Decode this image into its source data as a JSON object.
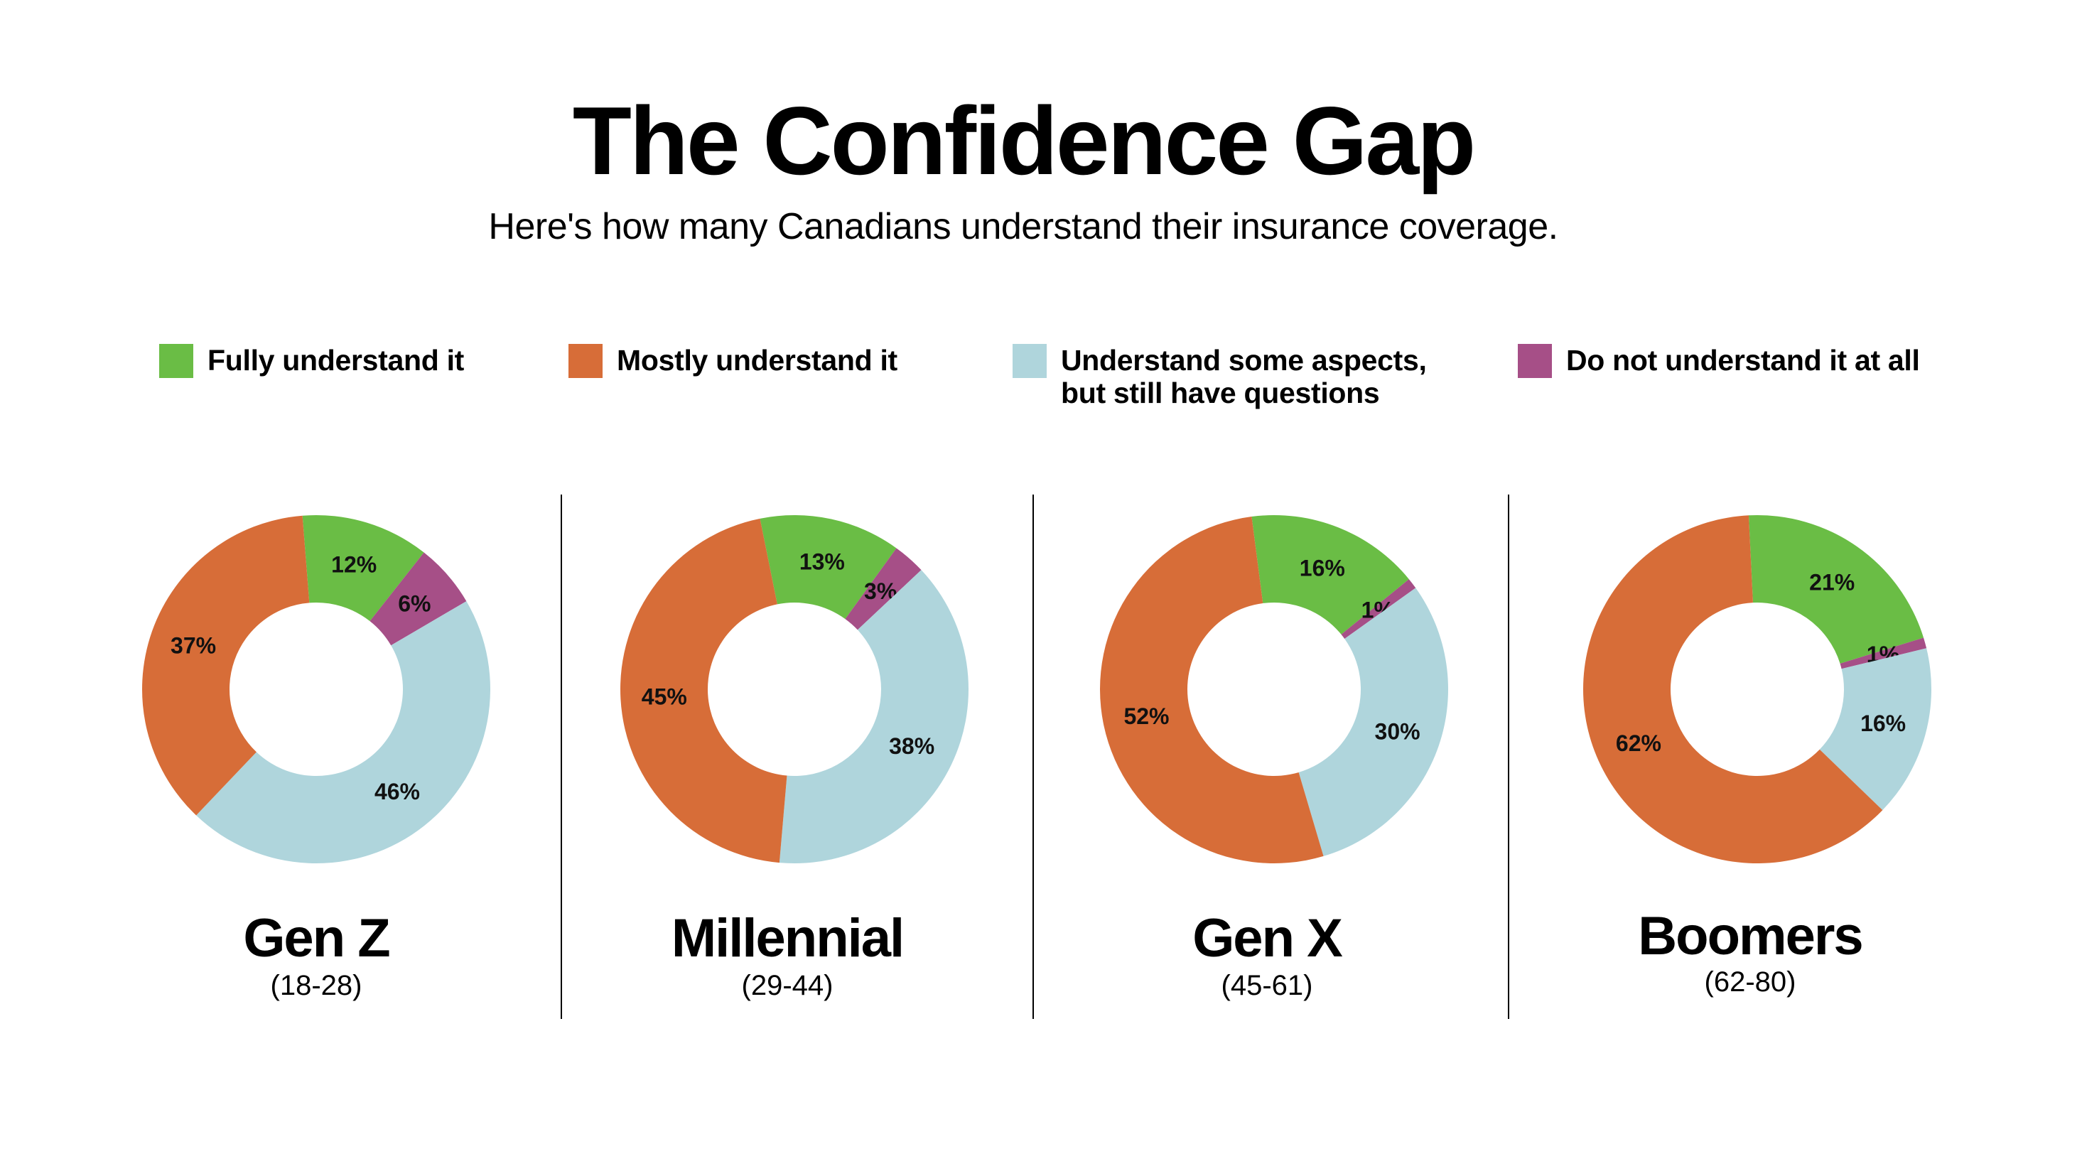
{
  "header": {
    "title": "The Confidence Gap",
    "subtitle": "Here's how many Canadians understand their insurance coverage."
  },
  "legend": [
    {
      "label": "Fully understand it",
      "color": "#6abd45"
    },
    {
      "label": "Mostly understand it",
      "color": "#d76d38"
    },
    {
      "label": "Understand some aspects,\nbut still have questions",
      "color": "#afd5dc"
    },
    {
      "label": "Do not understand it at all",
      "color": "#a64f87"
    }
  ],
  "chart_data": {
    "type": "pie",
    "variant": "donut",
    "categories": [
      "Fully understand it",
      "Mostly understand it",
      "Understand some aspects, but still have questions",
      "Do not understand it at all"
    ],
    "colors": [
      "#6abd45",
      "#d76d38",
      "#afd5dc",
      "#a64f87"
    ],
    "charts": [
      {
        "name": "Gen Z",
        "age": "(18-28)",
        "values": [
          12,
          37,
          46,
          6
        ],
        "labels": [
          "12%",
          "37%",
          "46%",
          "6%"
        ]
      },
      {
        "name": "Millennial",
        "age": "(29-44)",
        "values": [
          13,
          45,
          38,
          3
        ],
        "labels": [
          "13%",
          "45%",
          "38%",
          "3%"
        ]
      },
      {
        "name": "Gen X",
        "age": "(45-61)",
        "values": [
          16,
          52,
          30,
          1
        ],
        "labels": [
          "16%",
          "52%",
          "30%",
          "1%"
        ]
      },
      {
        "name": "Boomers",
        "age": "(62-80)",
        "values": [
          21,
          62,
          16,
          1
        ],
        "labels": [
          "21%",
          "62%",
          "16%",
          "1%"
        ]
      }
    ]
  }
}
